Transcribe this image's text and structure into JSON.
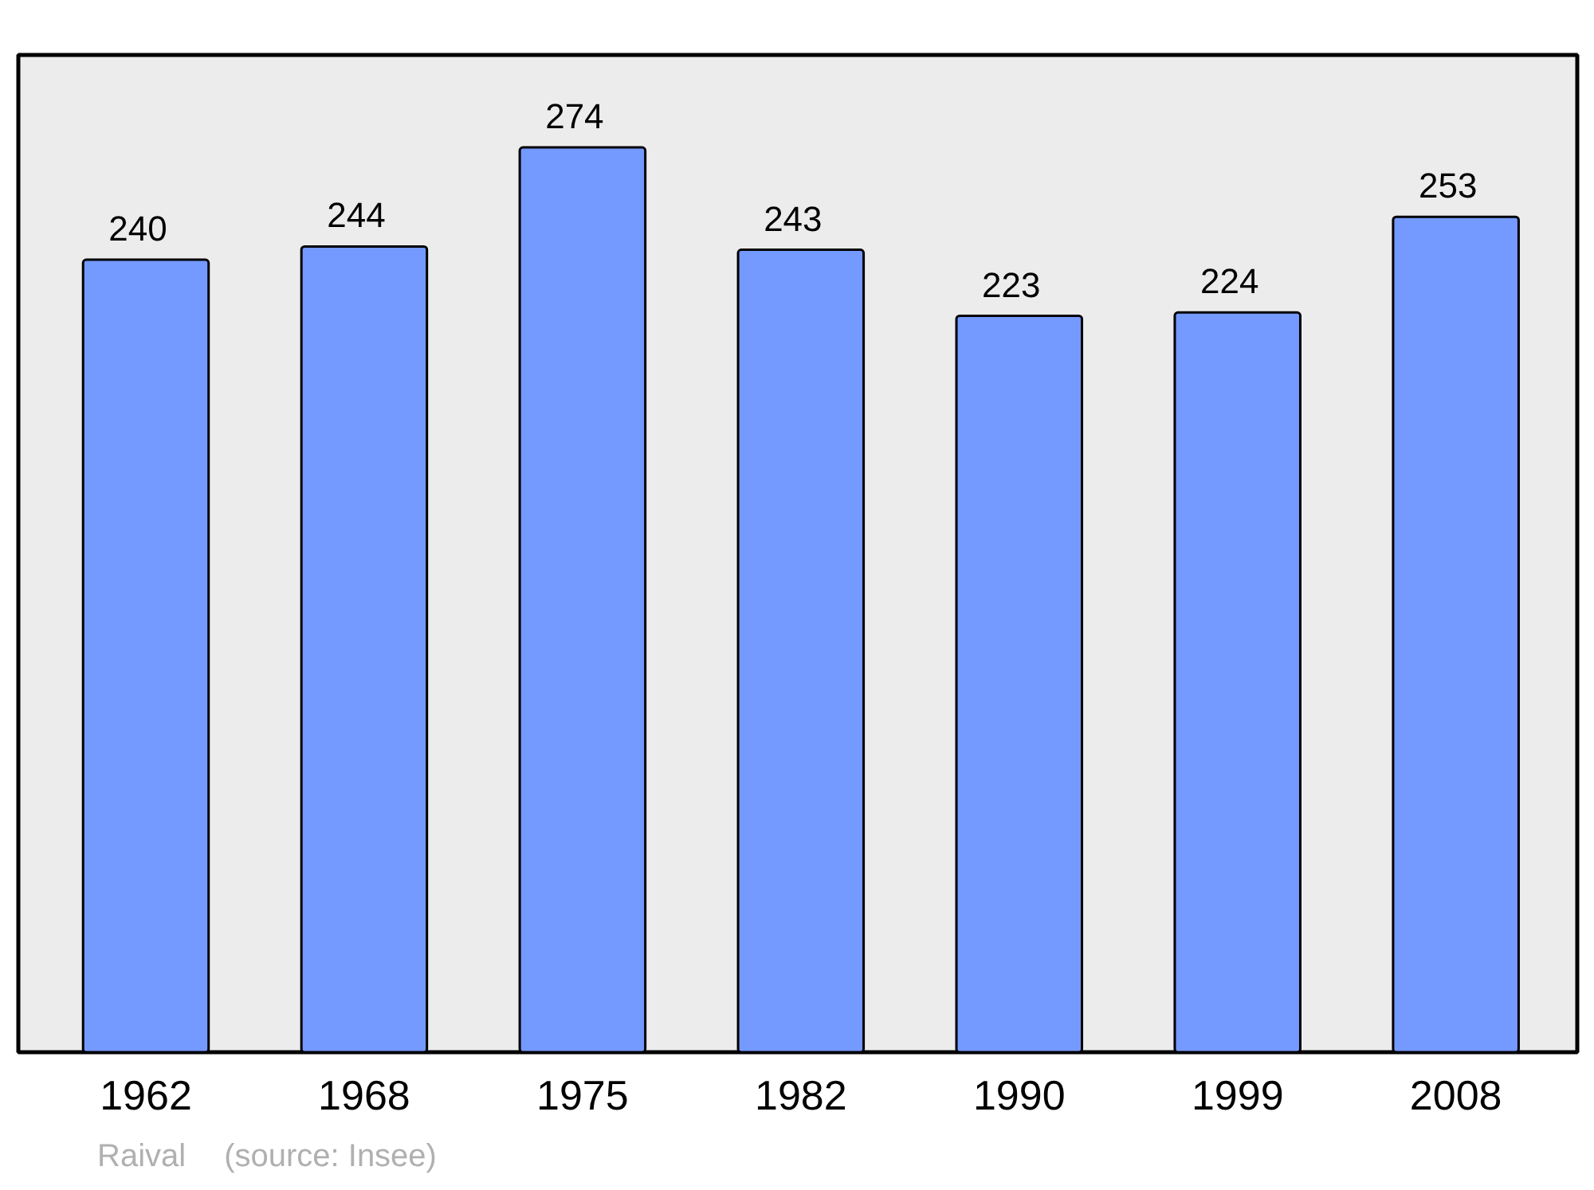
{
  "chart_data": {
    "type": "bar",
    "categories": [
      "1962",
      "1968",
      "1975",
      "1982",
      "1990",
      "1999",
      "2008"
    ],
    "values": [
      240,
      244,
      274,
      243,
      223,
      224,
      253
    ],
    "color": "#7499ff",
    "data_labels": true,
    "ylim": [
      0,
      302
    ],
    "grid": false,
    "annotations": [
      "Raival",
      "(source: Insee)"
    ]
  }
}
